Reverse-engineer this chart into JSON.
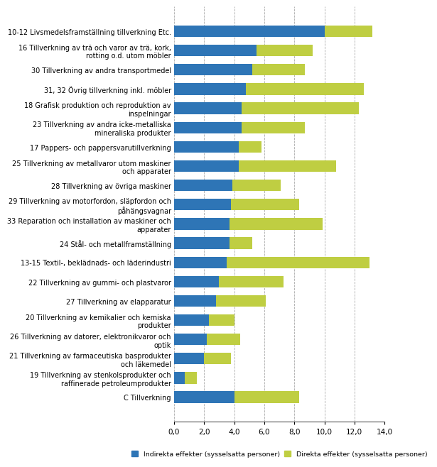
{
  "categories": [
    "10-12 Livsmedelsframställning tillverkning Etc.",
    "16 Tillverkning av trä och varor av trä, kork,\nrotting o.d. utom möbler",
    "30 Tillverkning av andra transportmedel",
    "31, 32 Övrig tillverkning inkl. möbler",
    "18 Grafisk produktion och reproduktion av\ninspelningar",
    "23 Tillverkning av andra icke-metalliska\nmineraliska produkter",
    "17 Pappers- och pappersvarutillverkning",
    "25 Tillverkning av metallvaror utom maskiner\noch apparater",
    "28 Tillverkning av övriga maskiner",
    "29 Tillverkning av motorfordon, släpfordon och\npåhängsvagnar",
    "33 Reparation och installation av maskiner och\napparater",
    "24 Stål- och metallframställning",
    "13-15 Textil-, beklädnads- och läderindustri",
    "22 Tillverkning av gummi- och plastvaror",
    "27 Tillverkning av elapparatur",
    "20 Tillverkning av kemikalier och kemiska\nprodukter",
    "26 Tillverkning av datorer, elektronikvaror och\noptik",
    "21 Tillverkning av farmaceutiska basprodukter\noch läkemedel",
    "19 Tillverkning av stenkolsprodukter och\nraffinerade petroleumprodukter",
    "C Tillverkning"
  ],
  "indirect": [
    10.0,
    5.5,
    5.2,
    4.8,
    4.5,
    4.5,
    4.3,
    4.3,
    3.9,
    3.8,
    3.7,
    3.7,
    3.5,
    3.0,
    2.8,
    2.3,
    2.2,
    2.0,
    0.7,
    4.0
  ],
  "direct": [
    3.2,
    3.7,
    3.5,
    7.8,
    7.8,
    4.2,
    1.5,
    6.5,
    3.2,
    4.5,
    6.2,
    1.5,
    9.5,
    4.3,
    3.3,
    1.7,
    2.2,
    1.8,
    0.8,
    4.3
  ],
  "indirect_color": "#2E75B6",
  "direct_color": "#BFCE42",
  "xlim": [
    0,
    14
  ],
  "xticks": [
    0.0,
    2.0,
    4.0,
    6.0,
    8.0,
    10.0,
    12.0,
    14.0
  ],
  "legend_indirect": "Indirekta effekter (sysselsatta personer)",
  "legend_direct": "Direkta effekter (sysselsatta personer)",
  "label_fontsize": 7.0,
  "tick_fontsize": 7.5,
  "bar_height": 0.6
}
